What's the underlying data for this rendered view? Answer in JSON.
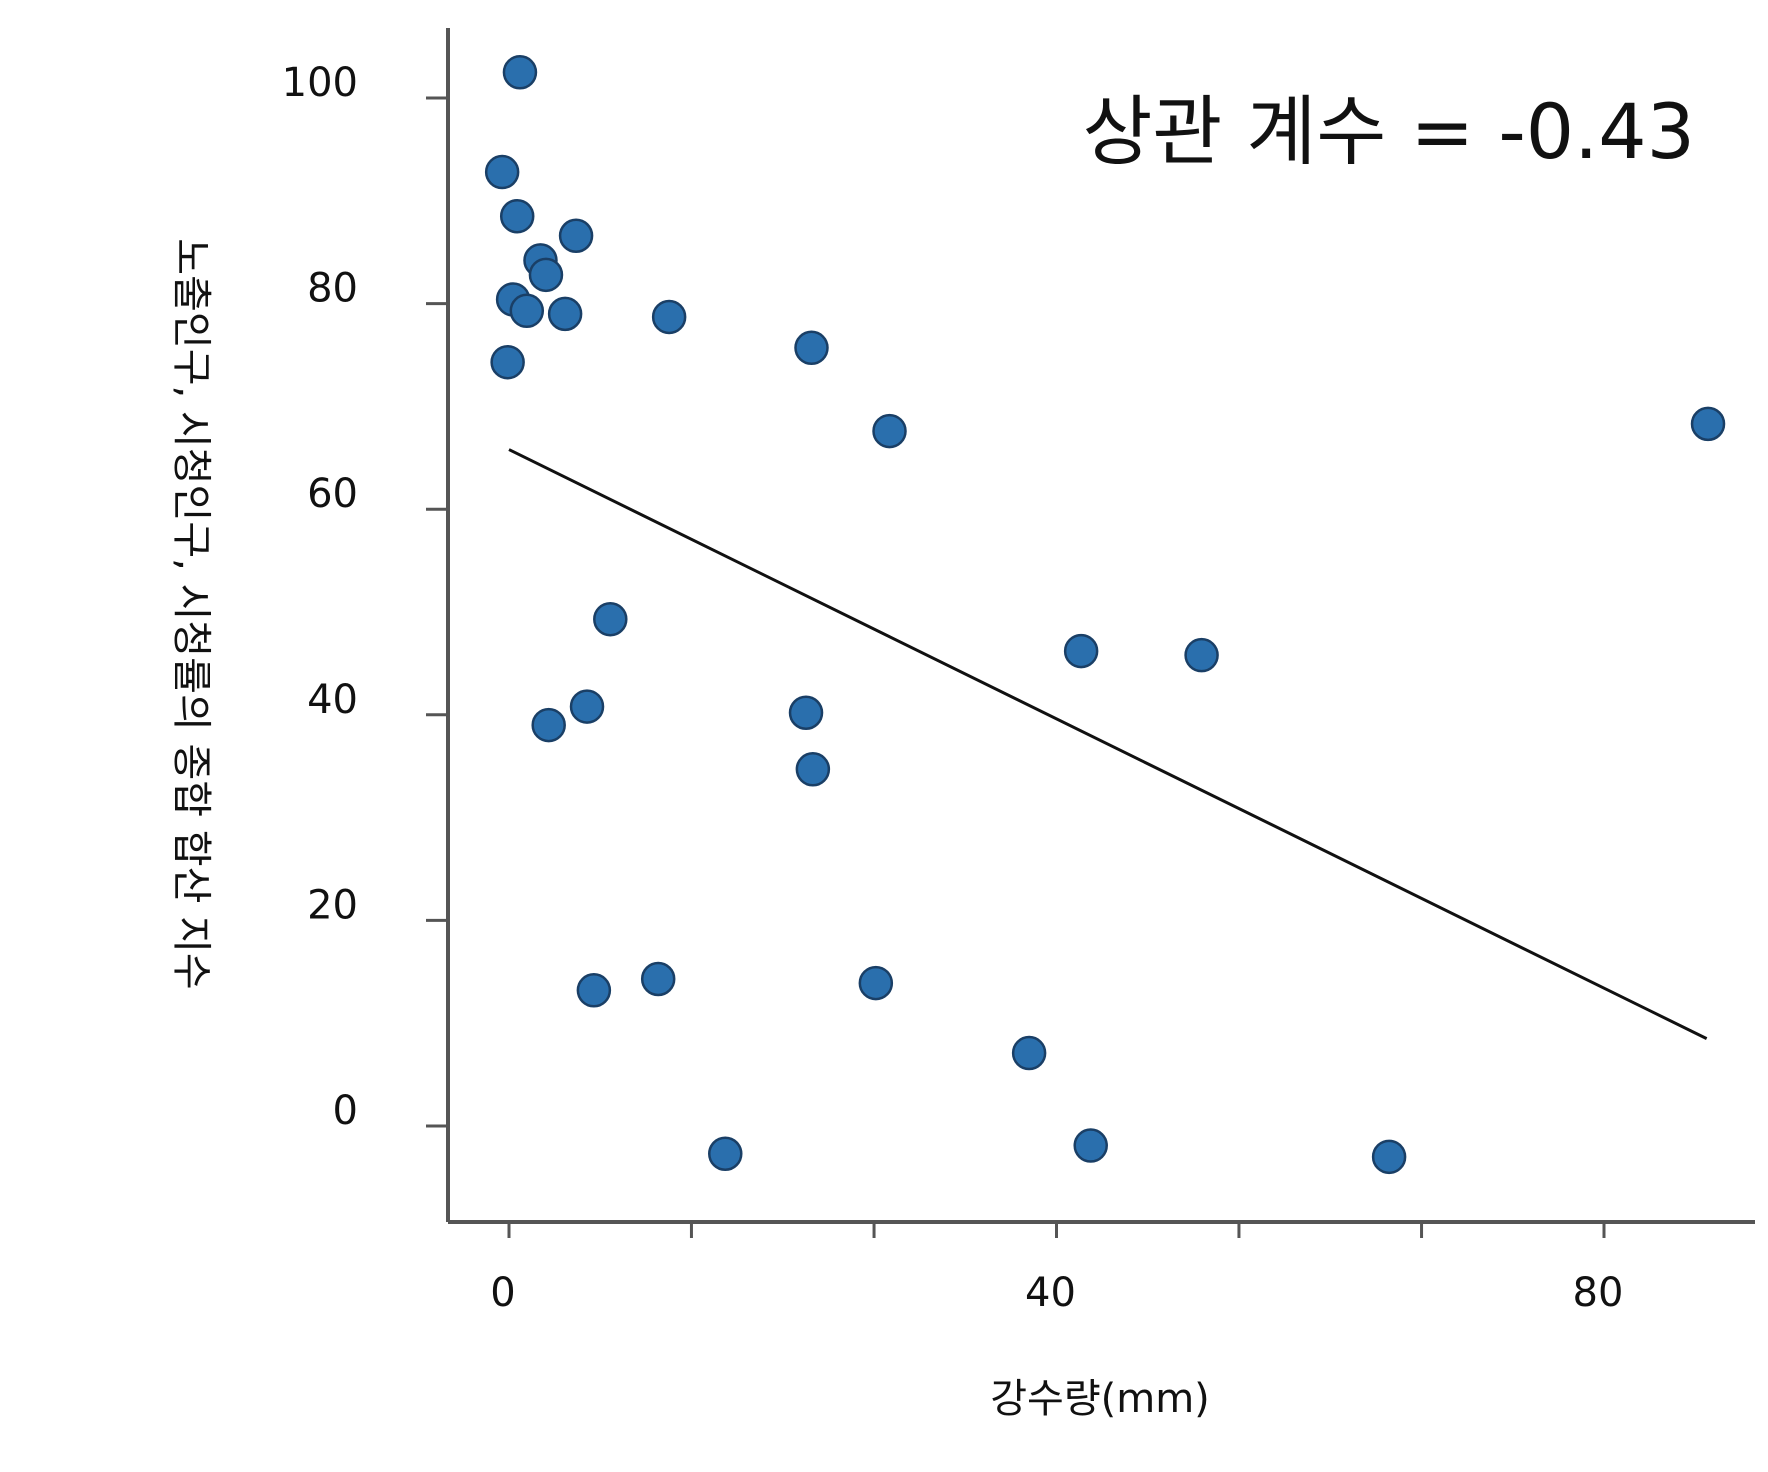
{
  "chart_data": {
    "type": "scatter",
    "xlabel": "강수량(mm)",
    "ylabel": "노출인구, 시청인구, 시청률의 종합 합산 지수",
    "annotation": "상관 계수 = -0.43",
    "xlim": [
      -2.5,
      91
    ],
    "ylim": [
      -9,
      107
    ],
    "xticks": [
      0,
      40,
      80
    ],
    "xminor": [
      0,
      13.33,
      26.67,
      40,
      53.33,
      66.67,
      80
    ],
    "yticks": [
      0,
      20,
      40,
      60,
      80,
      100
    ],
    "grid": false,
    "point_color": "#2a6fad",
    "point_edge": "#1a3f66",
    "series": [
      {
        "x": [
          0.8,
          -0.5,
          0.6,
          4.9,
          2.3,
          2.7,
          0.3,
          1.3,
          4.1,
          11.7,
          22.1,
          27.8,
          87.6,
          7.4,
          41.8,
          50.6,
          5.7,
          21.7,
          2.9,
          22.2,
          6.2,
          10.9,
          26.8,
          15.8,
          38.0,
          42.5,
          64.3,
          -0.1
        ],
        "y": [
          102.5,
          92.8,
          88.5,
          86.6,
          84.2,
          82.8,
          80.4,
          79.3,
          79.0,
          78.7,
          75.7,
          67.6,
          68.3,
          49.3,
          46.2,
          45.8,
          40.8,
          40.2,
          39.0,
          34.7,
          13.2,
          14.3,
          13.9,
          -2.7,
          7.1,
          -1.9,
          -3.0,
          74.3
        ]
      }
    ],
    "trendline": {
      "x": [
        0,
        87.5
      ],
      "y": [
        65.8,
        8.5
      ],
      "color": "#111111"
    }
  }
}
